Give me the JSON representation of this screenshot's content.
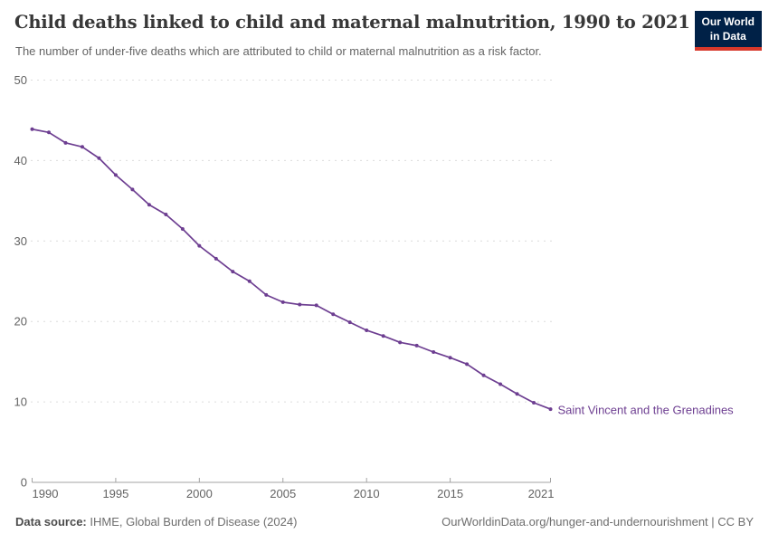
{
  "header": {
    "title": "Child deaths linked to child and maternal malnutrition, 1990 to 2021",
    "subtitle": "The number of under-five deaths which are attributed to child or maternal malnutrition as a risk factor.",
    "logo": {
      "line1": "Our World",
      "line2": "in Data",
      "bg_color": "#002147",
      "accent_color": "#d7382b"
    }
  },
  "chart_data": {
    "type": "line",
    "title": "Child deaths linked to child and maternal malnutrition, 1990 to 2021",
    "subtitle": "The number of under-five deaths which are attributed to child or maternal malnutrition as a risk factor.",
    "xlabel": "",
    "ylabel": "",
    "ylim": [
      0,
      50
    ],
    "yticks": [
      0,
      10,
      20,
      30,
      40,
      50
    ],
    "xticks": [
      1990,
      1995,
      2000,
      2005,
      2010,
      2015,
      2021
    ],
    "grid": "horizontal-dashed",
    "legend_position": "end-of-line-label",
    "x": [
      1990,
      1991,
      1992,
      1993,
      1994,
      1995,
      1996,
      1997,
      1998,
      1999,
      2000,
      2001,
      2002,
      2003,
      2004,
      2005,
      2006,
      2007,
      2008,
      2009,
      2010,
      2011,
      2012,
      2013,
      2014,
      2015,
      2016,
      2017,
      2018,
      2019,
      2020,
      2021
    ],
    "series": [
      {
        "name": "Saint Vincent and the Grenadines",
        "color": "#6d3e91",
        "values": [
          43.9,
          43.5,
          42.2,
          41.7,
          40.3,
          38.2,
          36.4,
          34.5,
          33.3,
          31.5,
          29.4,
          27.8,
          26.2,
          25.0,
          23.3,
          22.4,
          22.1,
          22.0,
          20.9,
          19.9,
          18.9,
          18.2,
          17.4,
          17.0,
          16.2,
          15.5,
          14.7,
          13.3,
          12.2,
          11.0,
          9.9,
          9.1
        ]
      }
    ]
  },
  "footer": {
    "source_label": "Data source:",
    "source_text": " IHME, Global Burden of Disease (2024)",
    "link_text": "OurWorldinData.org/hunger-and-undernourishment | CC BY"
  },
  "colors": {
    "series": "#6d3e91",
    "gridline": "#dcdcdc",
    "axis": "#a3a3a3",
    "tick_label": "#636363",
    "title": "#383838",
    "subtitle": "#646464"
  }
}
